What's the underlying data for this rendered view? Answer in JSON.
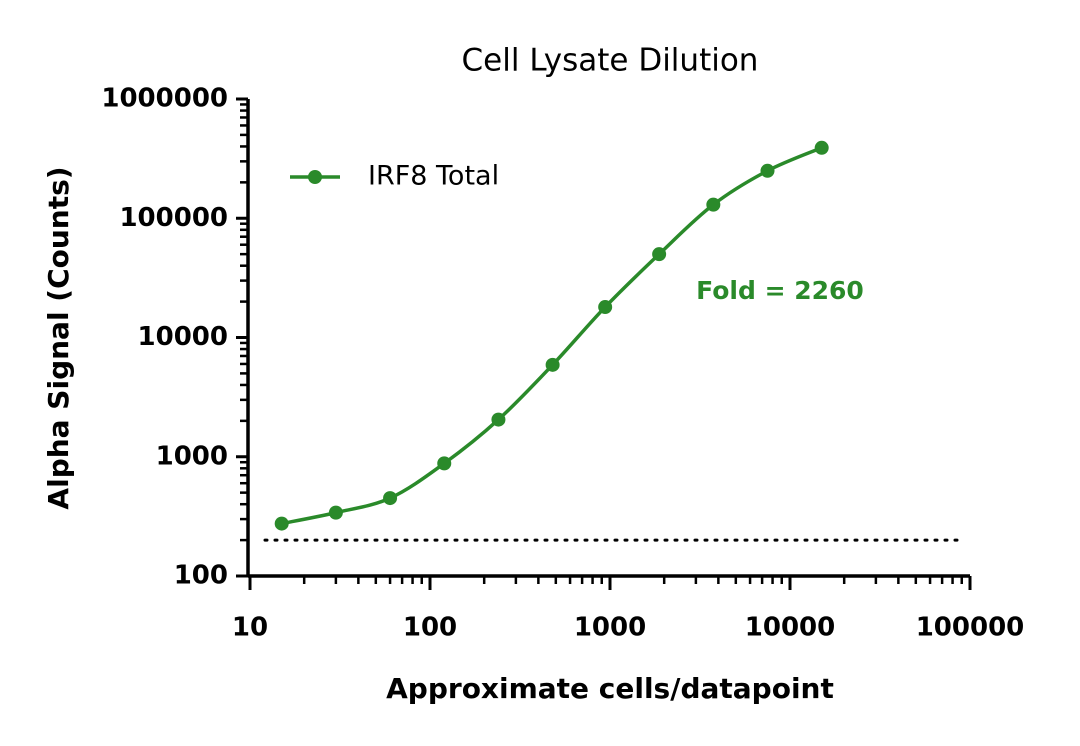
{
  "chart_data": {
    "type": "scatter",
    "title": "Cell Lysate Dilution",
    "xlabel": "Approximate cells/datapoint",
    "ylabel": "Alpha Signal (Counts)",
    "xscale": "log",
    "yscale": "log",
    "xlim": [
      10,
      100000
    ],
    "ylim": [
      100,
      1000000
    ],
    "xticks": [
      10,
      100,
      1000,
      10000,
      100000
    ],
    "yticks": [
      100,
      1000,
      10000,
      100000,
      1000000
    ],
    "series": [
      {
        "name": "IRF8 Total",
        "color": "#2a8a2a",
        "x": [
          15,
          30,
          60,
          120,
          240,
          480,
          940,
          1875,
          3750,
          7500,
          15000
        ],
        "values": [
          275,
          340,
          450,
          880,
          2050,
          5900,
          18000,
          50000,
          130000,
          250000,
          390000
        ]
      }
    ],
    "baseline": 200,
    "annotation": "Fold = 2260",
    "legend": "upper left"
  }
}
